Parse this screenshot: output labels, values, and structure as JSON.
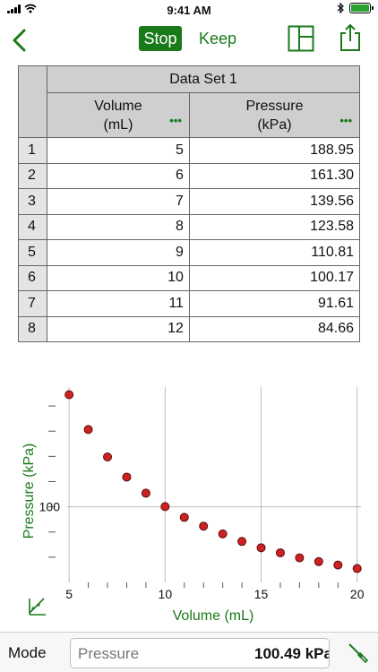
{
  "status_bar": {
    "time": "9:41 AM"
  },
  "nav": {
    "stop_label": "Stop",
    "keep_label": "Keep"
  },
  "table": {
    "dataset_title": "Data Set 1",
    "columns": [
      {
        "name": "Volume",
        "unit": "(mL)"
      },
      {
        "name": "Pressure",
        "unit": "(kPa)"
      }
    ],
    "rows": [
      {
        "index": "1",
        "volume": "5",
        "pressure": "188.95"
      },
      {
        "index": "2",
        "volume": "6",
        "pressure": "161.30"
      },
      {
        "index": "3",
        "volume": "7",
        "pressure": "139.56"
      },
      {
        "index": "4",
        "volume": "8",
        "pressure": "123.58"
      },
      {
        "index": "5",
        "volume": "9",
        "pressure": "110.81"
      },
      {
        "index": "6",
        "volume": "10",
        "pressure": "100.17"
      },
      {
        "index": "7",
        "volume": "11",
        "pressure": "91.61"
      },
      {
        "index": "8",
        "volume": "12",
        "pressure": "84.66"
      }
    ]
  },
  "chart_data": {
    "type": "scatter",
    "xlabel": "Volume (mL)",
    "ylabel": "Pressure (kPa)",
    "x_ticks": [
      5,
      10,
      15,
      20
    ],
    "y_tick_labels": [
      100
    ],
    "xlim": [
      4.9,
      20.2
    ],
    "ylim": [
      40,
      195
    ],
    "grid": true,
    "point_color": "#cc2222",
    "x": [
      5,
      6,
      7,
      8,
      9,
      10,
      11,
      12,
      13,
      14,
      15,
      16,
      17,
      18,
      19,
      20
    ],
    "y": [
      188.95,
      161.3,
      139.56,
      123.58,
      110.81,
      100.17,
      91.61,
      84.66,
      78.5,
      72.5,
      67.5,
      63.5,
      59.5,
      56.5,
      53.8,
      51.0
    ]
  },
  "bottom_bar": {
    "mode_label": "Mode",
    "meter_label": "Pressure",
    "meter_value": "100.49 kPa"
  },
  "colors": {
    "accent": "#1a7a1a",
    "header_gray": "#cfcfcf"
  }
}
